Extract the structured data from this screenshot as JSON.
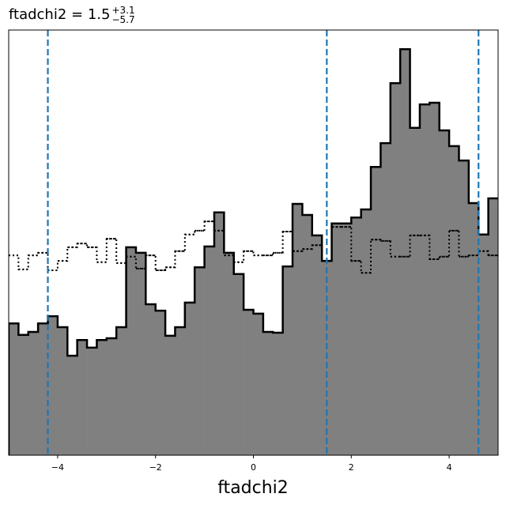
{
  "chart_data": {
    "type": "histogram",
    "title": "ftadchi2 = 1.5",
    "title_sup": "+3.1",
    "title_sub": "−5.7",
    "xlabel": "ftadchi2",
    "bins": [
      -5.0,
      -4.8,
      -4.6,
      -4.4,
      -4.2,
      -4.0,
      -3.8,
      -3.6,
      -3.4,
      -3.2,
      -3.0,
      -2.8,
      -2.6,
      -2.4,
      -2.2,
      -2.0,
      -1.8,
      -1.6,
      -1.4,
      -1.2,
      -1.0,
      -0.8,
      -0.6,
      -0.4,
      -0.2,
      0.0,
      0.2,
      0.4,
      0.6,
      0.8,
      1.0,
      1.2,
      1.4,
      1.6,
      1.8,
      2.0,
      2.2,
      2.4,
      2.6,
      2.8,
      3.0,
      3.2,
      3.4,
      3.6,
      3.8,
      4.0,
      4.2,
      4.4,
      4.6,
      4.8,
      5.0
    ],
    "series": [
      {
        "color": "#808080",
        "edgecolor": "#000000",
        "linestyle": "solid",
        "filled": true,
        "values": [
          31.0,
          28.3,
          29.0,
          31.0,
          32.7,
          30.1,
          23.4,
          27.1,
          25.3,
          27.1,
          27.5,
          30.1,
          48.9,
          47.6,
          35.5,
          34.0,
          28.1,
          30.1,
          35.9,
          44.2,
          49.1,
          57.1,
          47.6,
          42.6,
          34.2,
          33.3,
          29.0,
          28.8,
          44.4,
          59.1,
          56.5,
          51.7,
          45.7,
          54.5,
          54.5,
          55.9,
          57.8,
          67.8,
          73.4,
          87.5,
          95.5,
          77.0,
          82.5,
          82.9,
          76.4,
          72.7,
          69.3,
          59.3,
          51.9,
          60.4
        ]
      },
      {
        "color": "#000000",
        "edgecolor": "#000000",
        "linestyle": "dotted",
        "filled": false,
        "values": [
          47.0,
          43.7,
          47.0,
          47.6,
          43.5,
          45.7,
          48.9,
          49.8,
          48.9,
          45.4,
          50.9,
          45.2,
          46.7,
          43.9,
          47.0,
          43.5,
          44.2,
          48.0,
          51.9,
          52.8,
          55.0,
          52.8,
          47.0,
          45.4,
          48.0,
          47.0,
          47.0,
          47.6,
          52.6,
          48.0,
          48.5,
          49.4,
          45.7,
          53.7,
          53.7,
          45.7,
          42.9,
          50.7,
          50.4,
          46.7,
          46.7,
          51.7,
          51.7,
          46.1,
          46.7,
          52.8,
          46.7,
          47.0,
          48.0,
          47.0
        ]
      }
    ],
    "quantile_lines": [
      -4.2,
      1.5,
      4.6
    ],
    "quantile_color": "#1f77b4",
    "xlim": [
      -5,
      5
    ],
    "ylim": [
      0,
      100
    ],
    "xticks": [
      {
        "value": -4,
        "label": "−4"
      },
      {
        "value": -2,
        "label": "−2"
      },
      0,
      2,
      4
    ]
  }
}
